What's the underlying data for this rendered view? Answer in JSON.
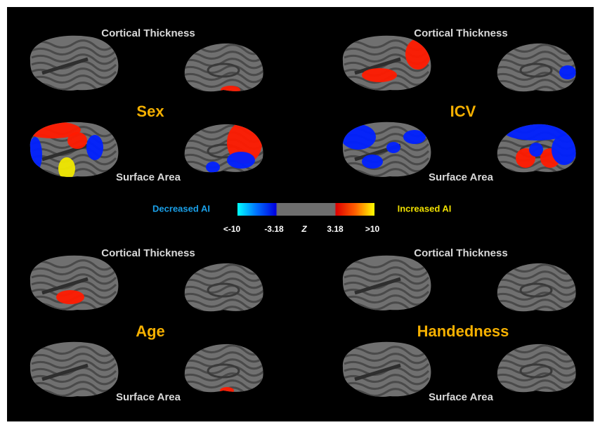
{
  "panels": [
    {
      "title": "Sex",
      "top_label": "Cortical Thickness",
      "bottom_label": "Surface Area"
    },
    {
      "title": "ICV",
      "top_label": "Cortical Thickness",
      "bottom_label": "Surface Area"
    },
    {
      "title": "Age",
      "top_label": "Cortical Thickness",
      "bottom_label": "Surface Area"
    },
    {
      "title": "Handedness",
      "top_label": "Cortical Thickness",
      "bottom_label": "Surface Area"
    }
  ],
  "colorbar": {
    "left_label": "Decreased  AI",
    "right_label": "Increased  AI",
    "ticks": [
      "<-10",
      "-3.18",
      "Z",
      "3.18",
      ">10"
    ]
  }
}
